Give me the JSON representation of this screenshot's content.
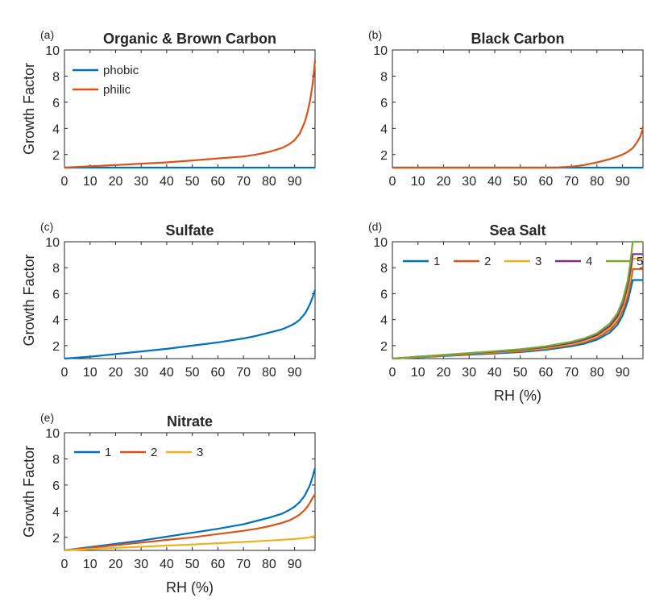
{
  "chart_data": [
    {
      "type": "line",
      "panel_label": "(a)",
      "title": "Organic & Brown Carbon",
      "xlabel": "",
      "ylabel": "Growth Factor",
      "xlim": [
        0,
        98
      ],
      "ylim": [
        1,
        10
      ],
      "xticks": [
        0,
        10,
        20,
        30,
        40,
        50,
        60,
        70,
        80,
        90
      ],
      "yticks": [
        2,
        4,
        6,
        8,
        10
      ],
      "legend": "top-left",
      "series": [
        {
          "name": "phobic",
          "color": "#0072BD",
          "x": [
            0,
            98
          ],
          "y": [
            1.0,
            1.0
          ]
        },
        {
          "name": "philic",
          "color": "#D95319",
          "x": [
            0,
            10,
            20,
            30,
            40,
            50,
            60,
            70,
            75,
            80,
            85,
            88,
            90,
            92,
            94,
            95,
            96,
            97,
            97.5,
            98
          ],
          "y": [
            1.0,
            1.1,
            1.2,
            1.3,
            1.4,
            1.55,
            1.7,
            1.85,
            2.0,
            2.2,
            2.5,
            2.8,
            3.1,
            3.6,
            4.5,
            5.2,
            6.1,
            7.3,
            8.2,
            9.2
          ]
        }
      ]
    },
    {
      "type": "line",
      "panel_label": "(b)",
      "title": "Black Carbon",
      "xlabel": "",
      "ylabel": "",
      "xlim": [
        0,
        98
      ],
      "ylim": [
        1,
        10
      ],
      "xticks": [
        0,
        10,
        20,
        30,
        40,
        50,
        60,
        70,
        80,
        90
      ],
      "yticks": [
        2,
        4,
        6,
        8,
        10
      ],
      "legend": "none",
      "series": [
        {
          "name": "",
          "color": "#0072BD",
          "x": [
            0,
            98
          ],
          "y": [
            1.0,
            1.0
          ]
        },
        {
          "name": "",
          "color": "#D95319",
          "x": [
            0,
            10,
            20,
            30,
            40,
            50,
            60,
            65,
            70,
            75,
            80,
            85,
            88,
            90,
            92,
            94,
            95,
            96,
            97,
            97.5,
            98
          ],
          "y": [
            1.0,
            1.0,
            1.0,
            1.0,
            1.0,
            1.0,
            1.0,
            1.02,
            1.07,
            1.2,
            1.4,
            1.65,
            1.85,
            2.0,
            2.2,
            2.5,
            2.75,
            3.05,
            3.4,
            3.7,
            4.1
          ]
        }
      ]
    },
    {
      "type": "line",
      "panel_label": "(c)",
      "title": "Sulfate",
      "xlabel": "",
      "ylabel": "Growth Factor",
      "xlim": [
        0,
        98
      ],
      "ylim": [
        1,
        10
      ],
      "xticks": [
        0,
        10,
        20,
        30,
        40,
        50,
        60,
        70,
        80,
        90
      ],
      "yticks": [
        2,
        4,
        6,
        8,
        10
      ],
      "legend": "none",
      "series": [
        {
          "name": "",
          "color": "#0072BD",
          "x": [
            0,
            10,
            20,
            30,
            40,
            50,
            60,
            70,
            75,
            80,
            85,
            88,
            90,
            92,
            94,
            95,
            96,
            97,
            98
          ],
          "y": [
            1.0,
            1.15,
            1.35,
            1.55,
            1.75,
            2.0,
            2.25,
            2.55,
            2.75,
            3.0,
            3.25,
            3.5,
            3.7,
            4.0,
            4.45,
            4.8,
            5.2,
            5.7,
            6.3
          ]
        }
      ]
    },
    {
      "type": "line",
      "panel_label": "(d)",
      "title": "Sea Salt",
      "xlabel": "RH (%)",
      "ylabel": "",
      "xlim": [
        0,
        98
      ],
      "ylim": [
        1,
        10
      ],
      "xticks": [
        0,
        10,
        20,
        30,
        40,
        50,
        60,
        70,
        80,
        90
      ],
      "yticks": [
        2,
        4,
        6,
        8,
        10
      ],
      "legend": "top",
      "series": [
        {
          "name": "1",
          "color": "#0072BD",
          "x": [
            0,
            10,
            20,
            30,
            40,
            50,
            60,
            70,
            75,
            80,
            85,
            88,
            90,
            92,
            93,
            94,
            95,
            98
          ],
          "y": [
            1.0,
            1.1,
            1.2,
            1.3,
            1.4,
            1.5,
            1.68,
            1.95,
            2.15,
            2.45,
            3.0,
            3.6,
            4.3,
            5.4,
            6.2,
            7.05,
            7.05,
            7.05
          ]
        },
        {
          "name": "2",
          "color": "#D95319",
          "x": [
            0,
            10,
            20,
            30,
            40,
            50,
            60,
            70,
            75,
            80,
            85,
            88,
            90,
            92,
            93,
            94,
            95,
            98
          ],
          "y": [
            1.0,
            1.12,
            1.23,
            1.34,
            1.45,
            1.57,
            1.76,
            2.05,
            2.27,
            2.6,
            3.2,
            3.85,
            4.65,
            5.8,
            6.7,
            7.9,
            7.9,
            7.9
          ]
        },
        {
          "name": "3",
          "color": "#EDB120",
          "x": [
            0,
            10,
            20,
            30,
            40,
            50,
            60,
            70,
            75,
            80,
            85,
            88,
            90,
            92,
            93,
            94,
            95,
            98
          ],
          "y": [
            1.0,
            1.13,
            1.25,
            1.37,
            1.49,
            1.62,
            1.82,
            2.12,
            2.35,
            2.7,
            3.35,
            4.05,
            4.9,
            6.2,
            7.2,
            8.7,
            8.7,
            8.7
          ]
        },
        {
          "name": "4",
          "color": "#7E2F8E",
          "x": [
            0,
            10,
            20,
            30,
            40,
            50,
            60,
            70,
            75,
            80,
            85,
            88,
            90,
            92,
            93,
            94,
            95,
            98
          ],
          "y": [
            1.0,
            1.14,
            1.27,
            1.4,
            1.53,
            1.67,
            1.88,
            2.2,
            2.45,
            2.82,
            3.5,
            4.25,
            5.15,
            6.6,
            7.7,
            9.05,
            9.05,
            9.05
          ]
        },
        {
          "name": "5",
          "color": "#77AC30",
          "x": [
            0,
            10,
            20,
            30,
            40,
            50,
            60,
            70,
            75,
            80,
            85,
            88,
            90,
            92,
            93,
            94,
            95,
            98
          ],
          "y": [
            1.0,
            1.15,
            1.29,
            1.43,
            1.57,
            1.72,
            1.95,
            2.3,
            2.56,
            2.95,
            3.7,
            4.5,
            5.45,
            7.0,
            8.3,
            10.0,
            10.0,
            10.0
          ]
        }
      ]
    },
    {
      "type": "line",
      "panel_label": "(e)",
      "title": "Nitrate",
      "xlabel": "RH (%)",
      "ylabel": "Growth Factor",
      "xlim": [
        0,
        98
      ],
      "ylim": [
        1,
        10
      ],
      "xticks": [
        0,
        10,
        20,
        30,
        40,
        50,
        60,
        70,
        80,
        90
      ],
      "yticks": [
        2,
        4,
        6,
        8,
        10
      ],
      "legend": "top-left",
      "series": [
        {
          "name": "1",
          "color": "#0072BD",
          "x": [
            0,
            10,
            20,
            30,
            40,
            50,
            60,
            70,
            75,
            80,
            85,
            88,
            90,
            92,
            94,
            95,
            96,
            97,
            98
          ],
          "y": [
            1.0,
            1.25,
            1.5,
            1.75,
            2.05,
            2.35,
            2.65,
            3.0,
            3.25,
            3.5,
            3.8,
            4.1,
            4.35,
            4.7,
            5.2,
            5.6,
            6.0,
            6.6,
            7.3
          ]
        },
        {
          "name": "2",
          "color": "#D95319",
          "x": [
            0,
            10,
            20,
            30,
            40,
            50,
            60,
            70,
            75,
            80,
            85,
            88,
            90,
            92,
            94,
            95,
            96,
            97,
            98
          ],
          "y": [
            1.0,
            1.2,
            1.4,
            1.6,
            1.8,
            2.0,
            2.25,
            2.5,
            2.65,
            2.85,
            3.1,
            3.3,
            3.5,
            3.75,
            4.1,
            4.35,
            4.65,
            5.0,
            5.3
          ]
        },
        {
          "name": "3",
          "color": "#EDB120",
          "x": [
            0,
            10,
            20,
            30,
            40,
            50,
            60,
            70,
            80,
            90,
            95,
            98
          ],
          "y": [
            1.0,
            1.1,
            1.2,
            1.28,
            1.37,
            1.45,
            1.55,
            1.65,
            1.75,
            1.87,
            1.97,
            2.1
          ]
        }
      ]
    }
  ]
}
